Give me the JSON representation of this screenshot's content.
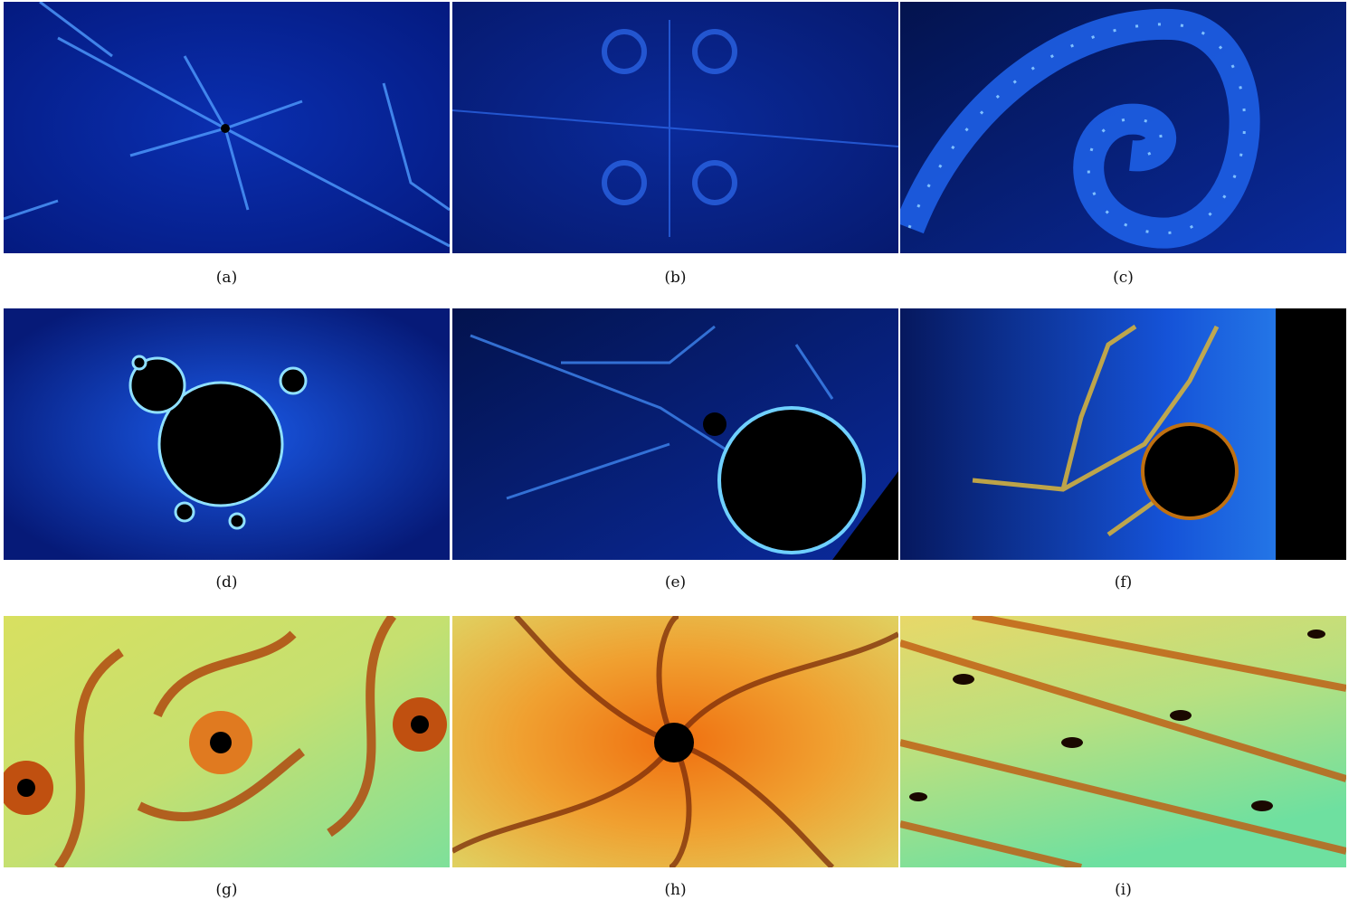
{
  "figure": {
    "panels": [
      {
        "caption": "(a)"
      },
      {
        "caption": "(b)"
      },
      {
        "caption": "(c)"
      },
      {
        "caption": "(d)"
      },
      {
        "caption": "(e)"
      },
      {
        "caption": "(f)"
      },
      {
        "caption": "(g)"
      },
      {
        "caption": "(h)"
      },
      {
        "caption": "(i)"
      }
    ]
  }
}
